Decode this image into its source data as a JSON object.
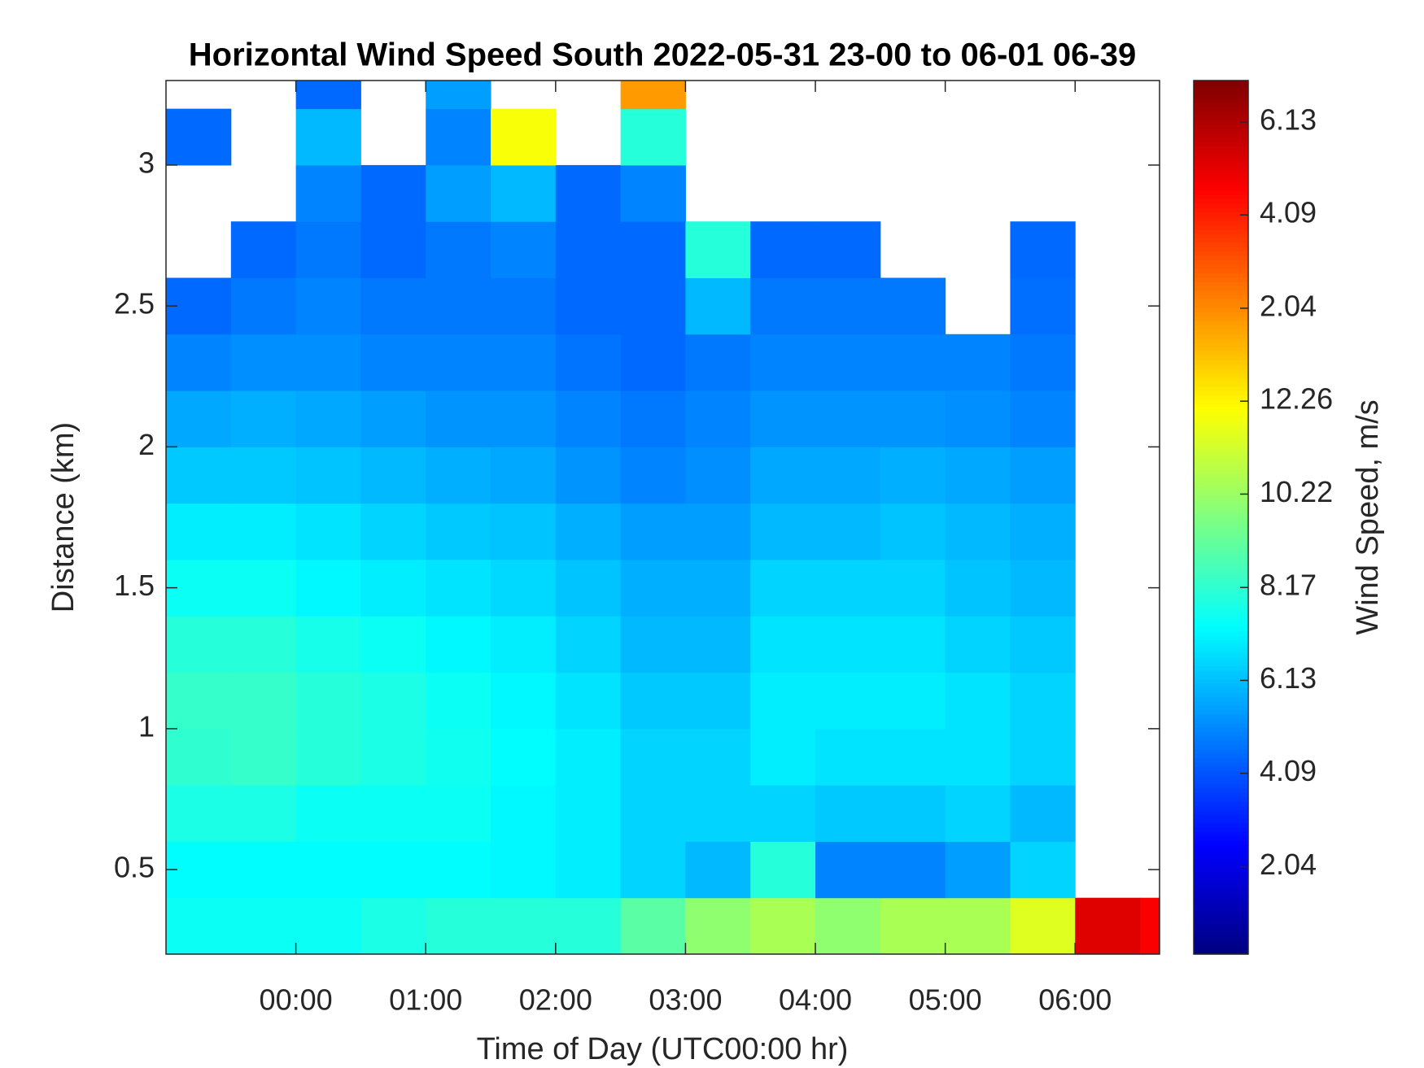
{
  "chart_data": {
    "type": "heatmap",
    "title": "Horizontal Wind Speed South 2022-05-31 23-00 to 06-01 06-39",
    "xlabel": "Time of Day (UTC00:00 hr)",
    "ylabel": "Distance (km)",
    "colorbar_label": "Wind Speed, m/s",
    "colormap": "jet",
    "xlim": [
      -1,
      6.65
    ],
    "xticks": [
      {
        "value": 0,
        "label": "00:00"
      },
      {
        "value": 1,
        "label": "01:00"
      },
      {
        "value": 2,
        "label": "02:00"
      },
      {
        "value": 3,
        "label": "03:00"
      },
      {
        "value": 4,
        "label": "04:00"
      },
      {
        "value": 5,
        "label": "05:00"
      },
      {
        "value": 6,
        "label": "06:00"
      }
    ],
    "ylim": [
      0.2,
      3.3
    ],
    "yticks": [
      0.5,
      1,
      1.5,
      2,
      2.5,
      3
    ],
    "clim": [
      0.12,
      19.3
    ],
    "cticks": [
      2.04,
      4.09,
      6.13,
      8.17,
      10.22,
      12.26,
      {
        "value": 14.3,
        "label": "2.04"
      },
      {
        "value": 16.35,
        "label": "4.09"
      },
      {
        "value": 18.39,
        "label": "6.13"
      }
    ],
    "x_edges": [
      -1,
      -0.5,
      0,
      0.5,
      1,
      1.5,
      2,
      2.5,
      3,
      3.5,
      4,
      4.5,
      5,
      5.5,
      6,
      6.5,
      6.65
    ],
    "y_edges": [
      0.2,
      0.4,
      0.6,
      0.8,
      1.0,
      1.2,
      1.4,
      1.6,
      1.8,
      2.0,
      2.2,
      2.4,
      2.6,
      2.8,
      3.0,
      3.2,
      3.3
    ],
    "values": [
      [
        7.5,
        7.5,
        7.5,
        7.8,
        8,
        8,
        8,
        9,
        10,
        10.5,
        10,
        10.5,
        10.5,
        11.5,
        17.5,
        17
      ],
      [
        7.3,
        7.3,
        7.3,
        7.3,
        7.3,
        7.2,
        7,
        6.5,
        6,
        8,
        5,
        5,
        5.5,
        6.5,
        null,
        null
      ],
      [
        7.8,
        7.8,
        7.5,
        7.5,
        7.5,
        7.2,
        7,
        6.5,
        6.5,
        6.5,
        6.3,
        6.3,
        6.5,
        6,
        null,
        null
      ],
      [
        8.2,
        8.3,
        8,
        7.8,
        7.6,
        7.3,
        7,
        6.5,
        6.5,
        7,
        6.8,
        6.8,
        6.8,
        6.5,
        null,
        null
      ],
      [
        8.3,
        8.3,
        8,
        7.8,
        7.5,
        7.2,
        6.8,
        6.3,
        6.3,
        7,
        7,
        7,
        6.8,
        6.5,
        null,
        null
      ],
      [
        8,
        8,
        7.7,
        7.5,
        7.2,
        7,
        6.5,
        6,
        6,
        6.8,
        6.8,
        6.8,
        6.5,
        6.3,
        null,
        null
      ],
      [
        7.5,
        7.5,
        7.2,
        7,
        6.8,
        6.6,
        6.2,
        5.8,
        5.8,
        6.5,
        6.5,
        6.5,
        6.2,
        6,
        null,
        null
      ],
      [
        7,
        7,
        6.8,
        6.5,
        6.3,
        6.2,
        5.8,
        5.5,
        5.5,
        6,
        6,
        6.2,
        6,
        5.8,
        null,
        null
      ],
      [
        6.3,
        6.3,
        6.2,
        6,
        5.8,
        5.7,
        5.3,
        5,
        5.2,
        5.7,
        5.7,
        5.8,
        5.7,
        5.5,
        null,
        null
      ],
      [
        5.7,
        5.8,
        5.7,
        5.5,
        5.3,
        5.3,
        5,
        4.8,
        5,
        5.3,
        5.3,
        5.3,
        5.2,
        5,
        null,
        null
      ],
      [
        5,
        5.2,
        5.2,
        5,
        5,
        5,
        4.7,
        4.5,
        4.8,
        5,
        5,
        5,
        5,
        4.8,
        null,
        null
      ],
      [
        4.5,
        4.8,
        5,
        4.8,
        4.8,
        4.8,
        4.5,
        4.5,
        6,
        4.8,
        4.8,
        4.8,
        null,
        4.6,
        null,
        null
      ],
      [
        null,
        4.5,
        4.8,
        4.5,
        4.8,
        5,
        4.5,
        4.5,
        8,
        4.5,
        4.5,
        null,
        null,
        4.5,
        null,
        null
      ],
      [
        null,
        null,
        5,
        4.5,
        5.5,
        6,
        4.5,
        5,
        null,
        null,
        null,
        null,
        null,
        null,
        null,
        null
      ],
      [
        4.5,
        null,
        6,
        null,
        5,
        12,
        null,
        8,
        null,
        null,
        null,
        null,
        null,
        null,
        null,
        null
      ],
      [
        null,
        null,
        4.5,
        null,
        5.5,
        null,
        null,
        14,
        null,
        null,
        null,
        null,
        null,
        null,
        null,
        null
      ]
    ]
  }
}
